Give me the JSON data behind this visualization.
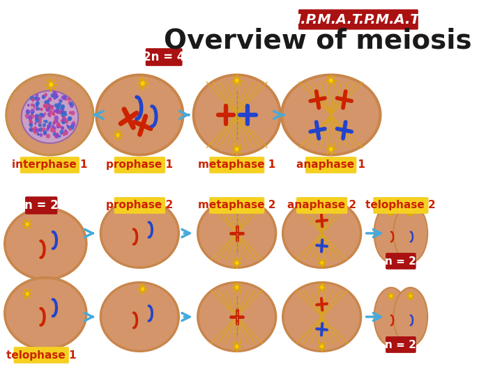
{
  "title": "Overview of meiosis",
  "ipmat_text": "I.P.M.A.T.P.M.A.T",
  "n2n_label": "2n = 4",
  "bg_color": "#ffffff",
  "cell_bg": "#d4956a",
  "cell_outline": "#c8854a",
  "nucleus_color": "#c8a0c8",
  "red_chr": "#cc2200",
  "blue_chr": "#2244cc",
  "spindle_color": "#daa520",
  "arrow_color": "#44aadd",
  "label_bg_yellow": "#f5d020",
  "label_bg_red": "#aa1111",
  "label_text_yellow": "#cc2200",
  "label_text_white": "#ffffff",
  "row1_labels": [
    "interphase 1",
    "prophase 1",
    "metaphase 1",
    "anaphase 1"
  ],
  "row2_labels": [
    "prophase 2",
    "metaphase 2",
    "anaphase 2",
    "telophase 2"
  ],
  "label_fontsize": 11,
  "title_fontsize": 28,
  "ipmat_fontsize": 14
}
